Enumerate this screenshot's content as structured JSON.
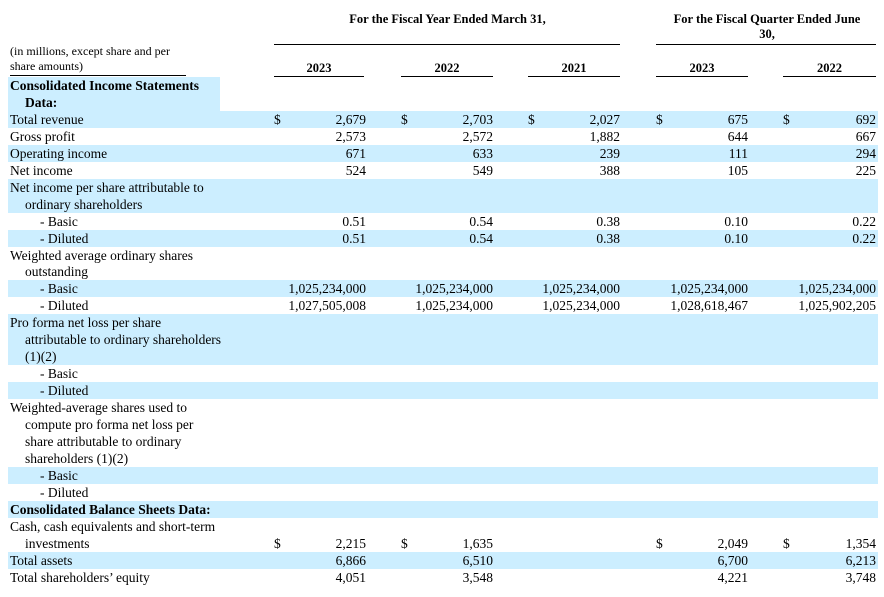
{
  "header": {
    "fiscal_year_group": "For the Fiscal Year Ended March 31,",
    "fiscal_quarter_group": "For the Fiscal Quarter Ended June 30,",
    "note": "(in millions, except share and per share amounts)",
    "columns": [
      "2023",
      "2022",
      "2021",
      "2023",
      "2022"
    ]
  },
  "rows": [
    {
      "label": "Consolidated Income Statements",
      "bold": true,
      "indent": 0,
      "shade": "label",
      "vals": [],
      "dollar": []
    },
    {
      "label": "Data:",
      "bold": true,
      "indent": 1,
      "shade": "label",
      "vals": [],
      "dollar": []
    },
    {
      "label": "Total revenue",
      "indent": 0,
      "shade": "full",
      "vals": [
        "2,679",
        "2,703",
        "2,027",
        "675",
        "692"
      ],
      "dollar": [
        "$",
        "$",
        "$",
        "$",
        "$"
      ]
    },
    {
      "label": "Gross profit",
      "indent": 0,
      "shade": "none",
      "vals": [
        "2,573",
        "2,572",
        "1,882",
        "644",
        "667"
      ],
      "dollar": []
    },
    {
      "label": "Operating income",
      "indent": 0,
      "shade": "full",
      "vals": [
        "671",
        "633",
        "239",
        "111",
        "294"
      ],
      "dollar": []
    },
    {
      "label": "Net income",
      "indent": 0,
      "shade": "none",
      "vals": [
        "524",
        "549",
        "388",
        "105",
        "225"
      ],
      "dollar": []
    },
    {
      "label": "Net income per share attributable to",
      "indent": 0,
      "shade": "full",
      "vals": [],
      "dollar": []
    },
    {
      "label": "ordinary shareholders",
      "indent": 1,
      "shade": "full",
      "vals": [],
      "dollar": []
    },
    {
      "label": "- Basic",
      "indent": 2,
      "shade": "none",
      "vals": [
        "0.51",
        "0.54",
        "0.38",
        "0.10",
        "0.22"
      ],
      "dollar": []
    },
    {
      "label": "- Diluted",
      "indent": 2,
      "shade": "full",
      "vals": [
        "0.51",
        "0.54",
        "0.38",
        "0.10",
        "0.22"
      ],
      "dollar": []
    },
    {
      "label": "Weighted average ordinary shares",
      "indent": 0,
      "shade": "none",
      "vals": [],
      "dollar": []
    },
    {
      "label": "outstanding",
      "indent": 1,
      "shade": "none",
      "vals": [],
      "dollar": []
    },
    {
      "label": "- Basic",
      "indent": 2,
      "shade": "full",
      "vals": [
        "1,025,234,000",
        "1,025,234,000",
        "1,025,234,000",
        "1,025,234,000",
        "1,025,234,000"
      ],
      "dollar": []
    },
    {
      "label": "- Diluted",
      "indent": 2,
      "shade": "none",
      "vals": [
        "1,027,505,008",
        "1,025,234,000",
        "1,025,234,000",
        "1,028,618,467",
        "1,025,902,205"
      ],
      "dollar": []
    },
    {
      "label": "Pro forma net loss per share",
      "indent": 0,
      "shade": "full",
      "vals": [],
      "dollar": []
    },
    {
      "label": "attributable to ordinary shareholders",
      "indent": 1,
      "shade": "full",
      "vals": [],
      "dollar": []
    },
    {
      "label": "(1)(2)",
      "indent": 1,
      "shade": "full",
      "vals": [],
      "dollar": []
    },
    {
      "label": "- Basic",
      "indent": 2,
      "shade": "none",
      "vals": [],
      "dollar": []
    },
    {
      "label": "- Diluted",
      "indent": 2,
      "shade": "full",
      "vals": [],
      "dollar": []
    },
    {
      "label": "Weighted-average shares used to",
      "indent": 0,
      "shade": "none",
      "vals": [],
      "dollar": []
    },
    {
      "label": "compute pro forma net loss per",
      "indent": 1,
      "shade": "none",
      "vals": [],
      "dollar": []
    },
    {
      "label": "share attributable to ordinary",
      "indent": 1,
      "shade": "none",
      "vals": [],
      "dollar": []
    },
    {
      "label": "shareholders (1)(2)",
      "indent": 1,
      "shade": "none",
      "vals": [],
      "dollar": []
    },
    {
      "label": "- Basic",
      "indent": 2,
      "shade": "full",
      "vals": [],
      "dollar": []
    },
    {
      "label": "- Diluted",
      "indent": 2,
      "shade": "none",
      "vals": [],
      "dollar": []
    },
    {
      "label": "Consolidated Balance Sheets Data:",
      "bold": true,
      "indent": 0,
      "shade": "full",
      "vals": [],
      "dollar": []
    },
    {
      "label": "Cash, cash equivalents and short-term",
      "indent": 0,
      "shade": "none",
      "vals": [],
      "dollar": []
    },
    {
      "label": "investments",
      "indent": 1,
      "shade": "none",
      "vals": [
        "2,215",
        "1,635",
        "",
        "2,049",
        "1,354"
      ],
      "dollar": [
        "$",
        "$",
        "",
        "$",
        "$"
      ]
    },
    {
      "label": "Total assets",
      "indent": 0,
      "shade": "full",
      "vals": [
        "6,866",
        "6,510",
        "",
        "6,700",
        "6,213"
      ],
      "dollar": []
    },
    {
      "label": "Total shareholders’ equity",
      "indent": 0,
      "shade": "none",
      "vals": [
        "4,051",
        "3,548",
        "",
        "4,221",
        "3,748"
      ],
      "dollar": []
    }
  ]
}
